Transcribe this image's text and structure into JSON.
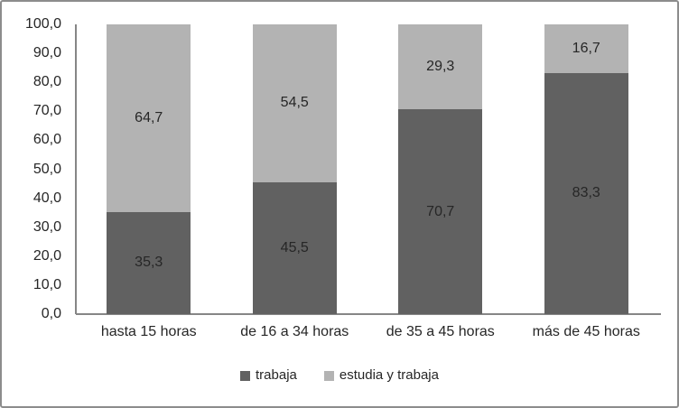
{
  "figure": {
    "background": "#ffffff",
    "border_color": "#8c8c8c"
  },
  "chart_data": {
    "type": "bar",
    "stacked": true,
    "title": "",
    "xlabel": "",
    "ylabel": "",
    "categories": [
      "hasta 15 horas",
      "de 16 a 34 horas",
      "de 35 a 45 horas",
      "más de 45 horas"
    ],
    "series": [
      {
        "name": "trabaja",
        "color": "#616161",
        "values": [
          35.3,
          45.5,
          70.7,
          83.3
        ],
        "labels": [
          "35,3",
          "45,5",
          "70,7",
          "83,3"
        ]
      },
      {
        "name": "estudia y trabaja",
        "color": "#b3b3b3",
        "values": [
          64.7,
          54.5,
          29.3,
          16.7
        ],
        "labels": [
          "64,7",
          "54,5",
          "29,3",
          "16,7"
        ]
      }
    ],
    "ylim": [
      0,
      100
    ],
    "y_tick_step": 10,
    "y_tick_labels": [
      "0,0",
      "10,0",
      "20,0",
      "30,0",
      "40,0",
      "50,0",
      "60,0",
      "70,0",
      "80,0",
      "90,0",
      "100,0"
    ],
    "decimal_separator": ",",
    "grid": false,
    "legend_position": "bottom",
    "axis_color": "#868686",
    "label_color": "#262626"
  }
}
